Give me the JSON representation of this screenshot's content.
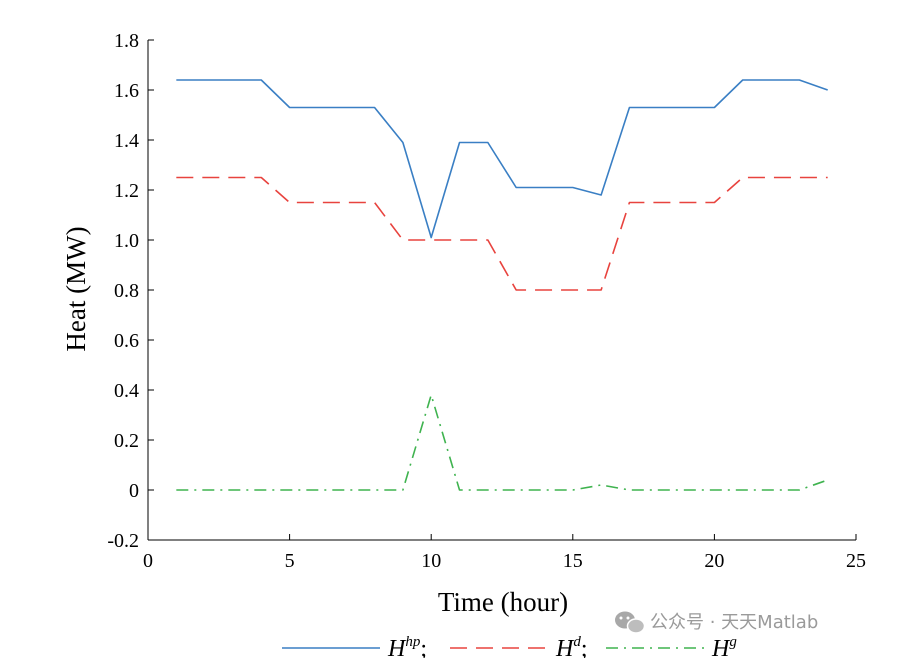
{
  "chart_data": {
    "type": "line",
    "xlabel": "Time (hour)",
    "ylabel": "Heat (MW)",
    "xlim": [
      0,
      25
    ],
    "ylim": [
      -0.2,
      1.8
    ],
    "xticks": [
      "0",
      "5",
      "10",
      "15",
      "20",
      "25"
    ],
    "yticks": [
      "-0.2",
      "0",
      "0.2",
      "0.4",
      "0.6",
      "0.8",
      "1.0",
      "1.2",
      "1.4",
      "1.6",
      "1.8"
    ],
    "x": [
      1,
      2,
      3,
      4,
      5,
      6,
      7,
      8,
      9,
      10,
      11,
      12,
      13,
      14,
      15,
      16,
      17,
      18,
      19,
      20,
      21,
      22,
      23,
      24
    ],
    "series": [
      {
        "name_base": "H",
        "name_sup": "hp",
        "separator": ";",
        "color": "#3a7fc4",
        "style": "solid",
        "values": [
          1.64,
          1.64,
          1.64,
          1.64,
          1.53,
          1.53,
          1.53,
          1.53,
          1.39,
          1.01,
          1.39,
          1.39,
          1.21,
          1.21,
          1.21,
          1.18,
          1.53,
          1.53,
          1.53,
          1.53,
          1.64,
          1.64,
          1.64,
          1.6
        ]
      },
      {
        "name_base": "H",
        "name_sup": "d",
        "separator": ";",
        "color": "#e8433e",
        "style": "dashed",
        "values": [
          1.25,
          1.25,
          1.25,
          1.25,
          1.15,
          1.15,
          1.15,
          1.15,
          1.0,
          1.0,
          1.0,
          1.0,
          0.8,
          0.8,
          0.8,
          0.8,
          1.15,
          1.15,
          1.15,
          1.15,
          1.25,
          1.25,
          1.25,
          1.25
        ]
      },
      {
        "name_base": "H",
        "name_sup": "g",
        "separator": "",
        "color": "#3fb34f",
        "style": "dashdot",
        "values": [
          0,
          0,
          0,
          0,
          0,
          0,
          0,
          0,
          0,
          0.38,
          0,
          0,
          0,
          0,
          0,
          0.02,
          0,
          0,
          0,
          0,
          0,
          0,
          0,
          0.04
        ]
      }
    ],
    "legend_position": "bottom"
  },
  "watermark": {
    "icon": "wechat-icon",
    "text": "公众号 · 天天Matlab"
  }
}
